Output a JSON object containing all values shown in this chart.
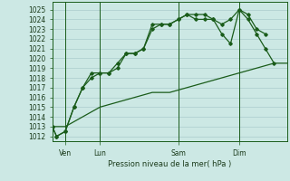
{
  "title": "Pression niveau de la mer( hPa )",
  "bg_color": "#cce8e4",
  "grid_color": "#aacccc",
  "line_color": "#1a5c1a",
  "xlim": [
    0,
    27
  ],
  "ylim": [
    1011.5,
    1025.8
  ],
  "yticks": [
    1012,
    1013,
    1014,
    1015,
    1016,
    1017,
    1018,
    1019,
    1020,
    1021,
    1022,
    1023,
    1024,
    1025
  ],
  "xtick_labels": [
    "Ven",
    "Lun",
    "Sam",
    "Dim"
  ],
  "xtick_positions": [
    1.5,
    5.5,
    14.5,
    21.5
  ],
  "vlines": [
    1.5,
    5.5,
    14.5,
    21.5
  ],
  "series1_x": [
    0,
    0.5,
    1.5,
    2.5,
    3.5,
    4.5,
    5.5,
    6.5,
    7.5,
    8.5,
    9.5,
    10.5,
    11.5,
    12.5,
    13.5,
    14.5,
    15.5,
    16.5,
    17.5,
    18.5,
    19.5,
    20.5,
    21.5,
    22.5,
    23.5,
    24.5,
    25.5
  ],
  "series1_y": [
    1013.0,
    1012.0,
    1012.5,
    1015.0,
    1017.0,
    1018.0,
    1018.5,
    1018.5,
    1019.0,
    1020.5,
    1020.5,
    1021.0,
    1023.0,
    1023.5,
    1023.5,
    1024.0,
    1024.5,
    1024.5,
    1024.5,
    1024.0,
    1023.5,
    1024.0,
    1025.0,
    1024.0,
    1022.5,
    1021.0,
    1019.5
  ],
  "series2_x": [
    0,
    1.5,
    3.5,
    5.5,
    7.5,
    9.5,
    11.5,
    13.5,
    15.5,
    17.5,
    19.5,
    21.5,
    23.5,
    25.5,
    27.0
  ],
  "series2_y": [
    1013.0,
    1013.0,
    1014.0,
    1015.0,
    1015.5,
    1016.0,
    1016.5,
    1016.5,
    1017.0,
    1017.5,
    1018.0,
    1018.5,
    1019.0,
    1019.5,
    1019.5
  ],
  "series3_x": [
    0,
    0.5,
    1.5,
    2.5,
    3.5,
    4.5,
    5.5,
    6.5,
    7.5,
    8.5,
    9.5,
    10.5,
    11.5,
    12.5,
    13.5,
    14.5,
    15.5,
    16.5,
    17.5,
    18.5,
    19.5,
    20.5,
    21.5,
    22.5,
    23.5,
    24.5
  ],
  "series3_y": [
    1013.0,
    1012.0,
    1012.5,
    1015.0,
    1017.0,
    1018.5,
    1018.5,
    1018.5,
    1019.5,
    1020.5,
    1020.5,
    1021.0,
    1023.5,
    1023.5,
    1023.5,
    1024.0,
    1024.5,
    1024.0,
    1024.0,
    1024.0,
    1022.5,
    1021.5,
    1025.0,
    1024.5,
    1023.0,
    1022.5
  ]
}
